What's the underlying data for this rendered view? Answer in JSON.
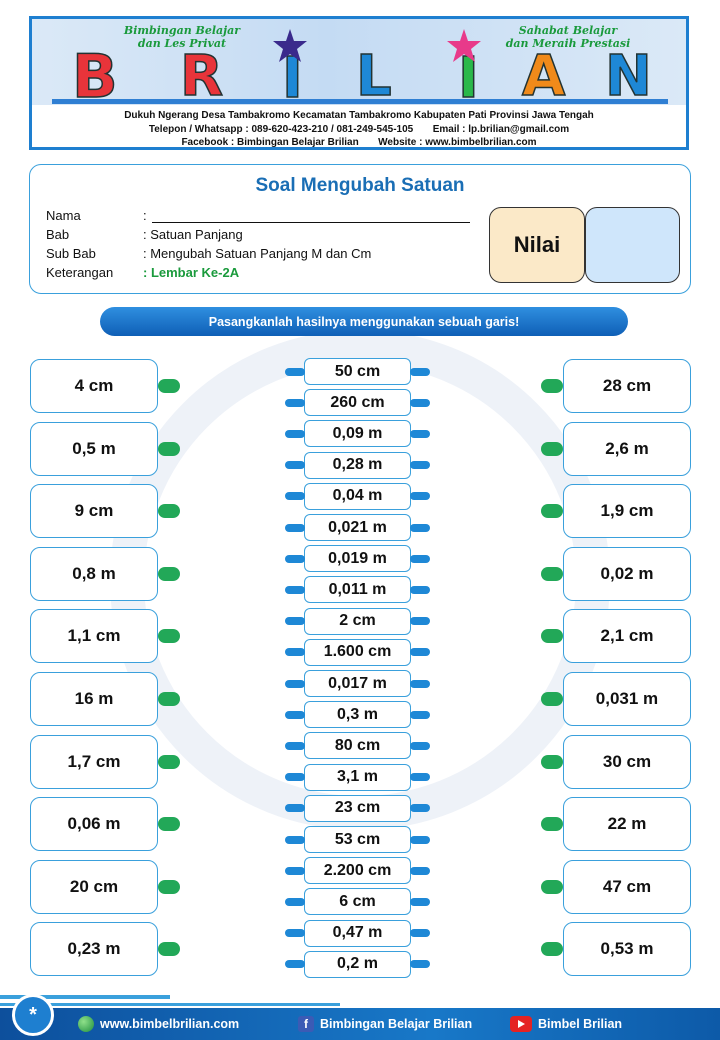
{
  "header": {
    "tagline_left": [
      "Bimbingan Belajar",
      "dan Les Privat"
    ],
    "tagline_right": [
      "Sahabat Belajar",
      "dan Meraih Prestasi"
    ],
    "logo_letters": [
      "B",
      "R",
      "I",
      "L",
      "I",
      "A",
      "N"
    ],
    "address": "Dukuh Ngerang Desa Tambakromo Kecamatan Tambakromo Kabupaten Pati Provinsi Jawa Tengah",
    "contact": "Telepon / Whatsapp : 089-620-423-210 / 081-249-545-105       Email : lp.brilian@gmail.com",
    "social": "Facebook : Bimbingan Belajar Brilian       Website : www.bimbelbrilian.com"
  },
  "info": {
    "title": "Soal Mengubah Satuan",
    "fields": [
      {
        "key": "Nama",
        "value": ":"
      },
      {
        "key": "Bab",
        "value": ": Satuan Panjang"
      },
      {
        "key": "Sub Bab",
        "value": ": Mengubah Satuan Panjang M dan Cm"
      },
      {
        "key": "Keterangan",
        "value": ": Lembar Ke-2A"
      }
    ],
    "nilai_label": "Nilai"
  },
  "instruction": "Pasangkanlah hasilnya menggunakan sebuah garis!",
  "left_items": [
    "4 cm",
    "0,5 m",
    "9 cm",
    "0,8 m",
    "1,1 cm",
    "16 m",
    "1,7 cm",
    "0,06 m",
    "20 cm",
    "0,23 m"
  ],
  "center_items": [
    "50 cm",
    "260 cm",
    "0,09 m",
    "0,28 m",
    "0,04 m",
    "0,021 m",
    "0,019 m",
    "0,011 m",
    "2 cm",
    "1.600 cm",
    "0,017 m",
    "0,3 m",
    "80 cm",
    "3,1 m",
    "23 cm",
    "53 cm",
    "2.200 cm",
    "6 cm",
    "0,47 m",
    "0,2 m"
  ],
  "right_items": [
    "28 cm",
    "2,6 m",
    "1,9 cm",
    "0,02 m",
    "2,1 cm",
    "0,031 m",
    "30 cm",
    "22 m",
    "47 cm",
    "0,53 m"
  ],
  "footer": {
    "circle_glyph": "*",
    "website": "www.bimbelbrilian.com",
    "facebook": "Bimbingan Belajar Brilian",
    "youtube": "Bimbel Brilian"
  },
  "colors": {
    "accent_blue": "#1e7fd0",
    "connector_green": "#22a858",
    "title_blue": "#1a6eb5"
  }
}
